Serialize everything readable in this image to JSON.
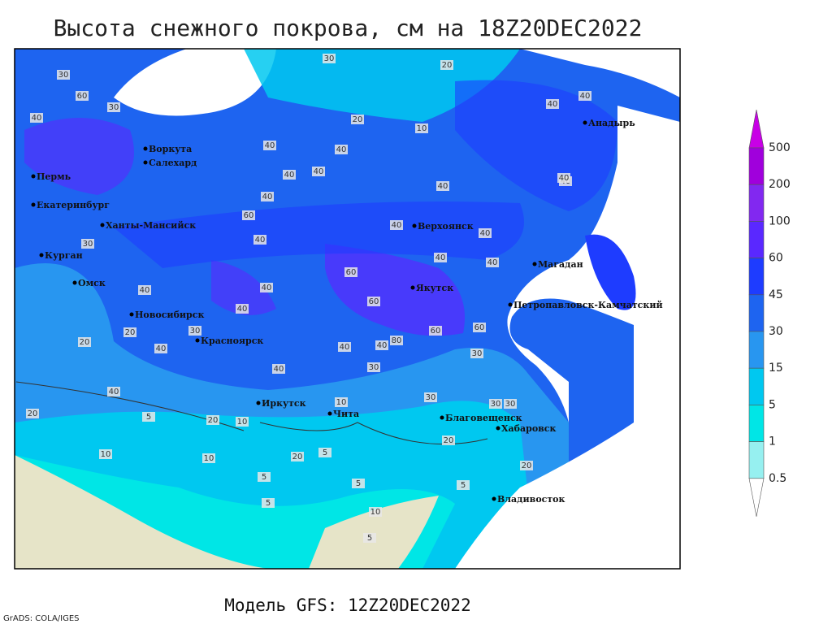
{
  "header": {
    "title": "Высота снежного покрова, см на 18Z20DEC2022"
  },
  "legend": {
    "labels": [
      500,
      200,
      100,
      60,
      45,
      30,
      15,
      5,
      1,
      0.5
    ],
    "colors": [
      "#c800e6",
      "#a000dc",
      "#8228f0",
      "#5a28ff",
      "#1e3cff",
      "#1e64f0",
      "#2896f0",
      "#00c8f0",
      "#00e6e6",
      "#96f0f0",
      "#ffffff"
    ]
  },
  "cities": [
    "Воркута",
    "Салехард",
    "Пермь",
    "Екатеринбург",
    "Ханты-Мансийск",
    "Курган",
    "Омск",
    "Новосибирск",
    "Красноярск",
    "Иркутск",
    "Чита",
    "Благовещенск",
    "Хабаровск",
    "Владивосток",
    "Якутск",
    "Верхоянск",
    "Магадан",
    "Петропавловск-Камчатский",
    "Анадырь"
  ],
  "contour_labels": [
    30,
    30,
    20,
    60,
    30,
    40,
    20,
    10,
    40,
    40,
    40,
    40,
    40,
    40,
    40,
    40,
    40,
    40,
    30,
    40,
    60,
    60,
    40,
    40,
    40,
    40,
    40,
    40,
    30,
    60,
    80,
    60,
    60,
    40,
    40,
    40,
    20,
    40,
    30,
    30,
    30,
    20,
    20,
    20,
    10,
    10,
    5,
    5,
    10,
    5,
    20,
    20,
    10,
    5,
    5,
    10,
    5,
    5,
    30,
    20,
    40,
    40,
    30
  ],
  "footer": {
    "model": "Модель GFS: 12Z20DEC2022",
    "credit": "GrADS: COLA/IGES"
  }
}
